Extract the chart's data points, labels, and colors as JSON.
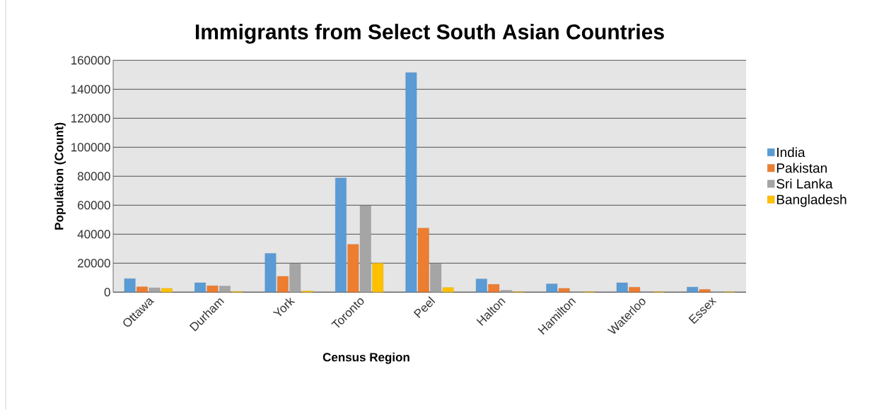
{
  "chart_data": {
    "type": "bar",
    "title": "Immigrants from Select South Asian Countries",
    "xlabel": "Census Region",
    "ylabel": "Population (Count)",
    "categories": [
      "Ottawa",
      "Durham",
      "York",
      "Toronto",
      "Peel",
      "Halton",
      "Hamilton",
      "Waterloo",
      "Essex"
    ],
    "series": [
      {
        "name": "India",
        "color": "#5b9bd5",
        "values": [
          9300,
          6500,
          26700,
          78800,
          151500,
          9100,
          5700,
          6500,
          3500
        ]
      },
      {
        "name": "Pakistan",
        "color": "#ed7d31",
        "values": [
          3700,
          4400,
          10900,
          33000,
          44200,
          5400,
          2600,
          3400,
          1900
        ]
      },
      {
        "name": "Sri  Lanka",
        "color": "#a5a5a5",
        "values": [
          3000,
          4200,
          19600,
          59700,
          19500,
          1300,
          200,
          300,
          100
        ]
      },
      {
        "name": "Bangladesh",
        "color": "#ffc000",
        "values": [
          2600,
          500,
          800,
          20000,
          3200,
          300,
          300,
          300,
          200
        ]
      }
    ],
    "ylim": [
      0,
      160000
    ],
    "yticks": [
      0,
      20000,
      40000,
      60000,
      80000,
      100000,
      120000,
      140000,
      160000
    ],
    "grid": "y",
    "legend": "right"
  }
}
